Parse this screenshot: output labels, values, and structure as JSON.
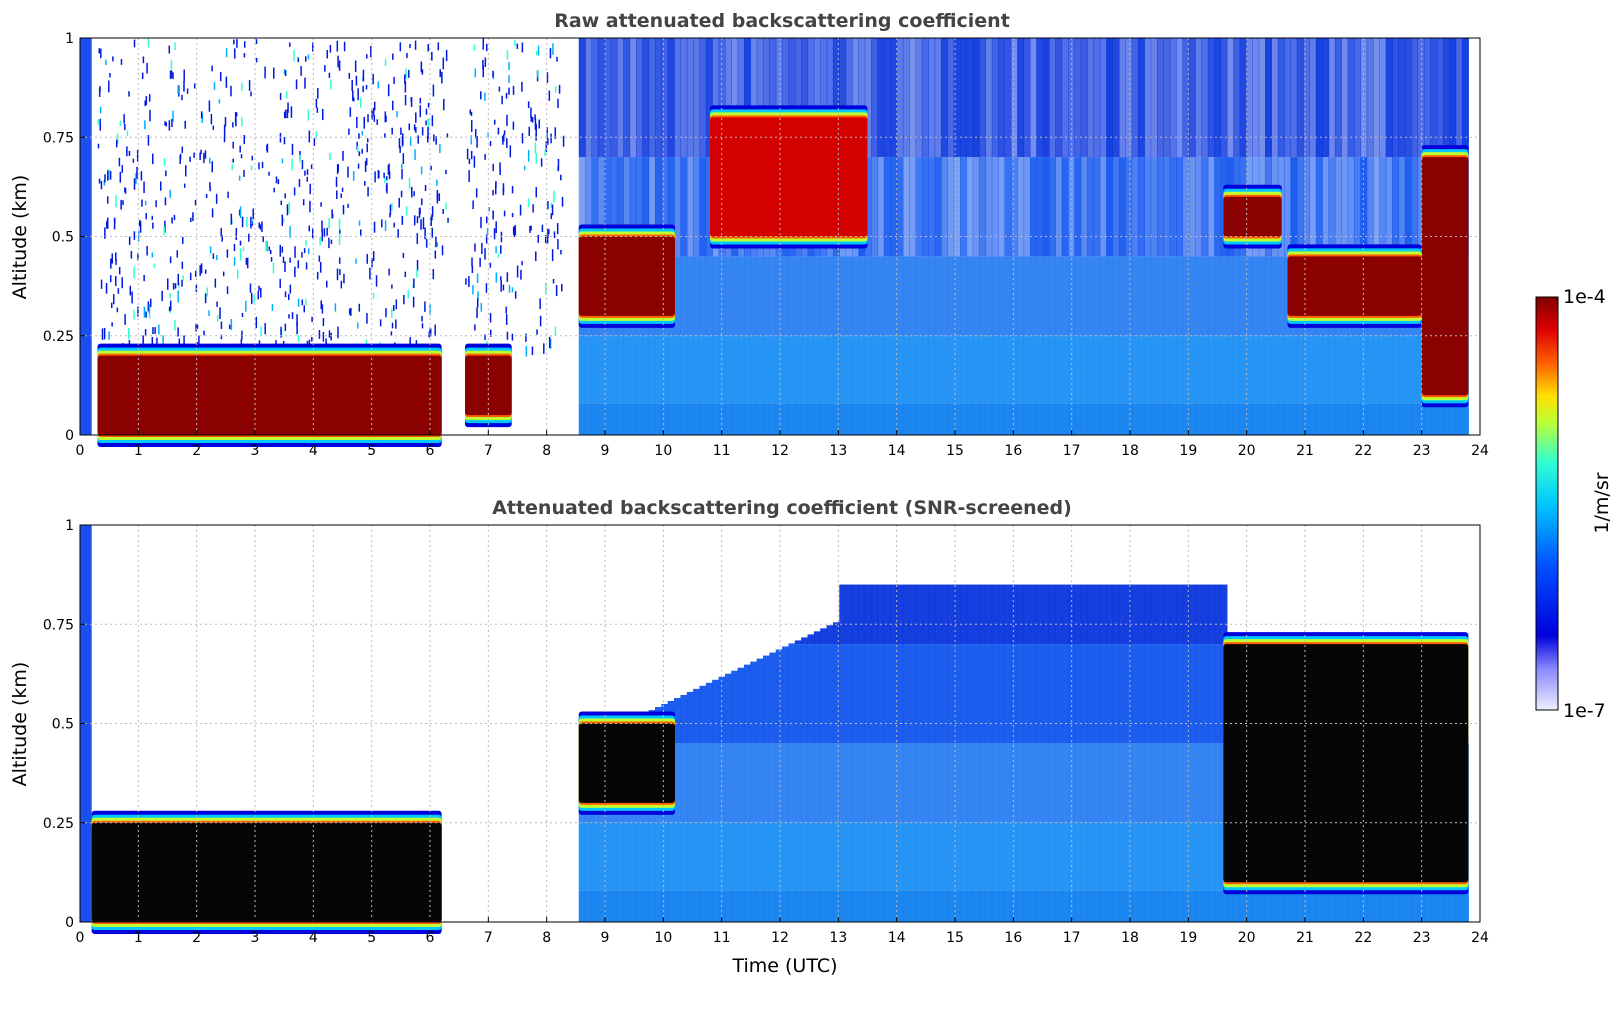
{
  "chart_data": [
    {
      "type": "heatmap",
      "title": "Raw attenuated backscattering coefficient",
      "xlabel": "",
      "ylabel": "Altitude (km)",
      "xlim": [
        0,
        24
      ],
      "ylim": [
        0,
        1
      ],
      "x_ticks": [
        "0",
        "1",
        "2",
        "3",
        "4",
        "5",
        "6",
        "7",
        "8",
        "9",
        "10",
        "11",
        "12",
        "13",
        "14",
        "15",
        "16",
        "17",
        "18",
        "19",
        "20",
        "21",
        "22",
        "23",
        "24"
      ],
      "y_ticks": [
        "0",
        "0.25",
        "0.5",
        "0.75",
        "1"
      ],
      "grid": true,
      "colorscale": "jet, log scale 1e-7 to 1e-4",
      "features": [
        {
          "desc": "dense aerosol/cloud layer",
          "time_range": [
            0.3,
            6.2
          ],
          "altitude_range": [
            0.0,
            0.2
          ],
          "level": "max"
        },
        {
          "desc": "layer",
          "time_range": [
            6.6,
            7.4
          ],
          "altitude_range": [
            0.05,
            0.2
          ],
          "level": "max"
        },
        {
          "desc": "no data gap",
          "time_range": [
            8.3,
            8.55
          ]
        },
        {
          "desc": "rising cloud layer",
          "time_range": [
            8.55,
            10.2
          ],
          "altitude_range": [
            0.3,
            0.5
          ],
          "level": "max"
        },
        {
          "desc": "cloud layer",
          "time_range": [
            10.8,
            13.5
          ],
          "altitude_range": [
            0.5,
            0.8
          ],
          "level": "high"
        },
        {
          "desc": "cloud layer",
          "time_range": [
            19.6,
            20.6
          ],
          "altitude_range": [
            0.5,
            0.6
          ],
          "level": "max"
        },
        {
          "desc": "cloud layer",
          "time_range": [
            20.7,
            23.0
          ],
          "altitude_range": [
            0.3,
            0.45
          ],
          "level": "max"
        },
        {
          "desc": "cloud layer",
          "time_range": [
            23.0,
            23.8
          ],
          "altitude_range": [
            0.1,
            0.7
          ],
          "level": "max"
        }
      ]
    },
    {
      "type": "heatmap",
      "title": "Attenuated backscattering coefficient (SNR-screened)",
      "xlabel": "Time (UTC)",
      "ylabel": "Altitude (km)",
      "xlim": [
        0,
        24
      ],
      "ylim": [
        0,
        1
      ],
      "x_ticks": [
        "0",
        "1",
        "2",
        "3",
        "4",
        "5",
        "6",
        "7",
        "8",
        "9",
        "10",
        "11",
        "12",
        "13",
        "14",
        "15",
        "16",
        "17",
        "18",
        "19",
        "20",
        "21",
        "22",
        "23",
        "24"
      ],
      "y_ticks": [
        "0",
        "0.25",
        "0.5",
        "0.75",
        "1"
      ],
      "grid": true,
      "colorscale": "jet, log scale 1e-7 to 1e-4, values above max shown black",
      "features": [
        {
          "desc": "screened low layer",
          "time_range": [
            0.2,
            6.2
          ],
          "altitude_range": [
            0.0,
            0.25
          ],
          "level": "saturated"
        },
        {
          "desc": "screened cloud",
          "time_range": [
            8.55,
            10.2
          ],
          "altitude_range": [
            0.3,
            0.5
          ],
          "level": "saturated"
        },
        {
          "desc": "screened cloud",
          "time_range": [
            19.6,
            23.8
          ],
          "altitude_range": [
            0.1,
            0.7
          ],
          "level": "saturated"
        }
      ]
    }
  ],
  "colorbar": {
    "label": "1/m/sr",
    "max_label": "1e-4",
    "min_label": "1e-7",
    "colors": [
      "#eeeeff",
      "#0000dd",
      "#0040ff",
      "#00c0ff",
      "#30ffd0",
      "#c0ff30",
      "#ffe000",
      "#ff6000",
      "#e00000",
      "#800000"
    ]
  }
}
